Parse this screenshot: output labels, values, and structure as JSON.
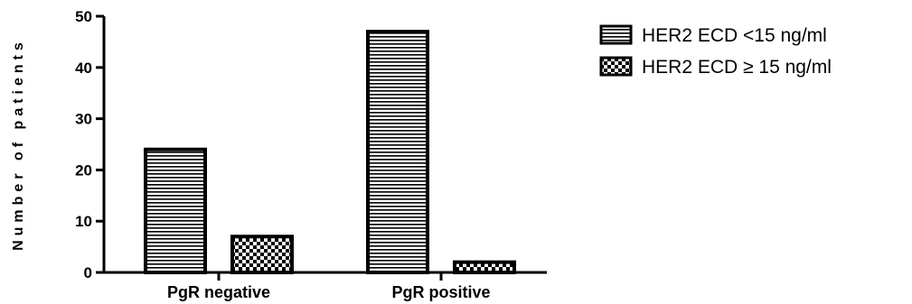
{
  "chart_data": {
    "type": "bar",
    "categories": [
      "PgR negative",
      "PgR positive"
    ],
    "series": [
      {
        "name": "HER2 ECD <15 ng/ml",
        "values": [
          24,
          47
        ],
        "pattern": "horizontal-lines"
      },
      {
        "name": "HER2 ECD ≥ 15 ng/ml",
        "values": [
          7,
          2
        ],
        "pattern": "checkerboard"
      }
    ],
    "title": "",
    "xlabel": "",
    "ylabel": "Number of patients",
    "ylim": [
      0,
      50
    ],
    "yticks": [
      0,
      10,
      20,
      30,
      40,
      50
    ],
    "grid": false,
    "legend_position": "top-right"
  }
}
